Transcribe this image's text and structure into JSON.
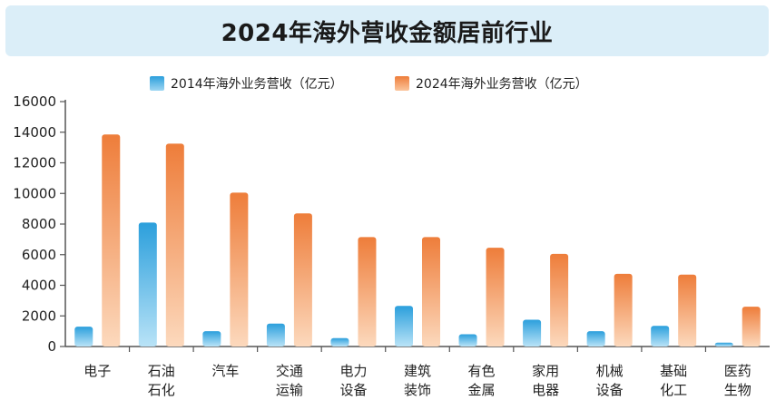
{
  "chart_data": {
    "type": "bar",
    "title": "2024年海外营收金额居前行业",
    "categories": [
      [
        "电子"
      ],
      [
        "石油",
        "石化"
      ],
      [
        "汽车"
      ],
      [
        "交通",
        "运输"
      ],
      [
        "电力",
        "设备"
      ],
      [
        "建筑",
        "装饰"
      ],
      [
        "有色",
        "金属"
      ],
      [
        "家用",
        "电器"
      ],
      [
        "机械",
        "设备"
      ],
      [
        "基础",
        "化工"
      ],
      [
        "医药",
        "生物"
      ]
    ],
    "series": [
      {
        "name": "2014年海外业务营收（亿元）",
        "values": [
          1300,
          8100,
          1000,
          1500,
          550,
          2650,
          800,
          1750,
          1000,
          1350,
          250
        ]
      },
      {
        "name": "2024年海外业务营收（亿元）",
        "values": [
          13850,
          13250,
          10050,
          8700,
          7150,
          7150,
          6450,
          6050,
          4750,
          4700,
          2600
        ]
      }
    ],
    "ylim": [
      0,
      16000
    ],
    "yticks": [
      "0",
      "2000",
      "4000",
      "6000",
      "8000",
      "10000",
      "12000",
      "14000",
      "16000"
    ],
    "grid": false,
    "legend_position": "top-center",
    "colors": {
      "series1_top": "#2b9fdc",
      "series1_bottom": "#b9e3f7",
      "series2_top": "#ee7d3a",
      "series2_bottom": "#fcd9bd",
      "axis": "#555555",
      "title_bg": "#dbeef8"
    }
  }
}
